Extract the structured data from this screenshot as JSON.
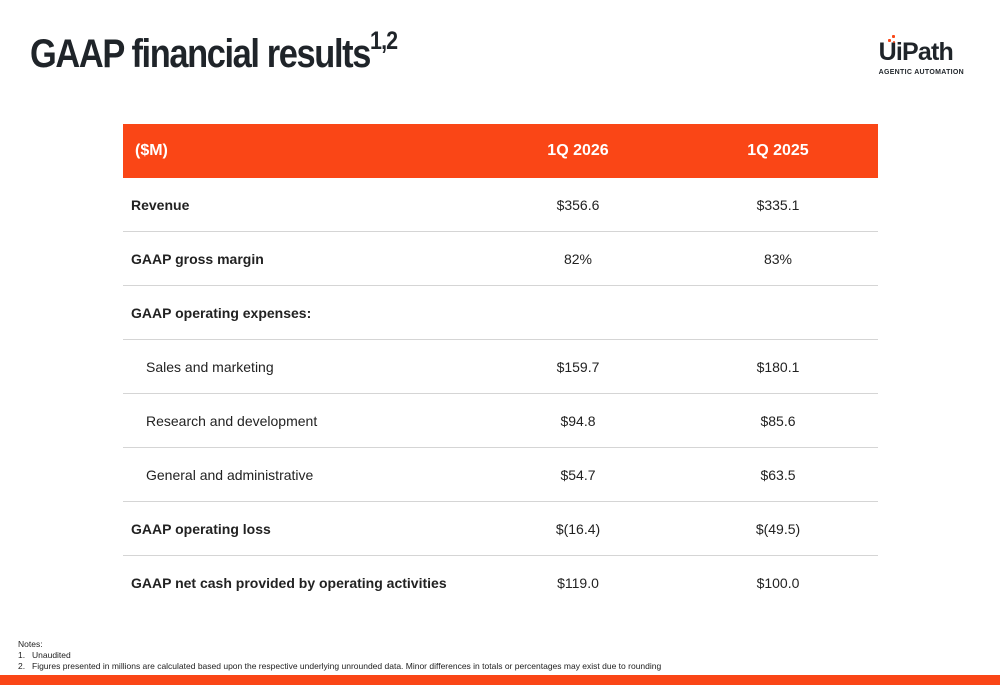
{
  "title": {
    "text": "GAAP financial results",
    "superscript": "1,2"
  },
  "logo": {
    "wordmark": "UiPath",
    "tagline": "AGENTIC AUTOMATION",
    "accent_color": "#fa4616"
  },
  "table": {
    "headers": [
      "($M)",
      "1Q 2026",
      "1Q 2025"
    ],
    "rows": [
      {
        "label": "Revenue",
        "values": [
          "$356.6",
          "$335.1"
        ]
      },
      {
        "label": "GAAP gross margin",
        "values": [
          "82%",
          "83%"
        ]
      },
      {
        "label": "GAAP operating expenses:",
        "values": [
          "",
          ""
        ]
      },
      {
        "label": "Sales and marketing",
        "values": [
          "$159.7",
          "$180.1"
        ]
      },
      {
        "label": "Research and development",
        "values": [
          "$94.8",
          "$85.6"
        ]
      },
      {
        "label": "General and administrative",
        "values": [
          "$54.7",
          "$63.5"
        ]
      },
      {
        "label": "GAAP operating loss",
        "values": [
          "$(16.4)",
          "$(49.5)"
        ]
      },
      {
        "label": "GAAP net cash provided by operating activities",
        "values": [
          "$119.0",
          "$100.0"
        ]
      }
    ]
  },
  "notes": {
    "heading": "Notes:",
    "items": [
      {
        "num": "1.",
        "text": "Unaudited"
      },
      {
        "num": "2.",
        "text": "Figures presented in millions are calculated based upon the respective underlying unrounded data. Minor differences in totals or percentages may exist due to rounding"
      }
    ]
  },
  "colors": {
    "accent": "#fa4616",
    "title": "#1f2429",
    "divider": "#d5d5d5"
  }
}
